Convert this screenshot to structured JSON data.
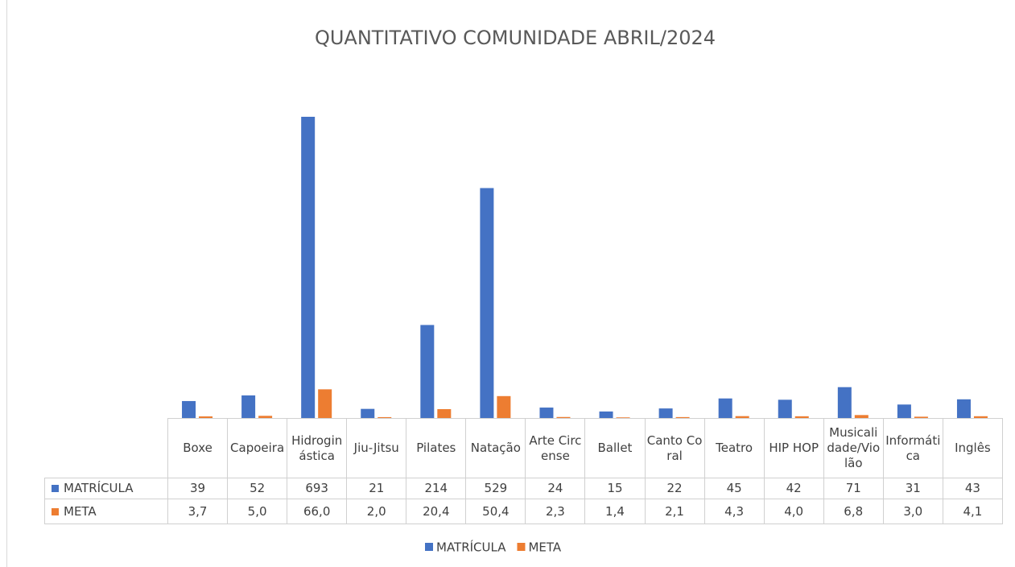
{
  "chart_data": {
    "type": "bar",
    "title": "QUANTITATIVO COMUNIDADE ABRIL/2024",
    "categories": [
      "Boxe",
      "Capoeira",
      "Hidroginástica",
      "Jiu-Jitsu",
      "Pilates",
      "Natação",
      "Arte Circense",
      "Ballet",
      "Canto Coral",
      "Teatro",
      "HIP HOP",
      "Musicalidade/Violão",
      "Informática",
      "Inglês"
    ],
    "series": [
      {
        "name": "MATRÍCULA",
        "color": "#4472c4",
        "values": [
          39,
          52,
          693,
          21,
          214,
          529,
          24,
          15,
          22,
          45,
          42,
          71,
          31,
          43
        ]
      },
      {
        "name": "META",
        "color": "#ed7d31",
        "values": [
          3.7,
          5.0,
          66.0,
          2.0,
          20.4,
          50.4,
          2.3,
          1.4,
          2.1,
          4.3,
          4.0,
          6.8,
          3.0,
          4.1
        ],
        "value_labels": [
          "3,7",
          "5,0",
          "66,0",
          "2,0",
          "20,4",
          "50,4",
          "2,3",
          "1,4",
          "2,1",
          "4,3",
          "4,0",
          "6,8",
          "3,0",
          "4,1"
        ]
      }
    ]
  }
}
